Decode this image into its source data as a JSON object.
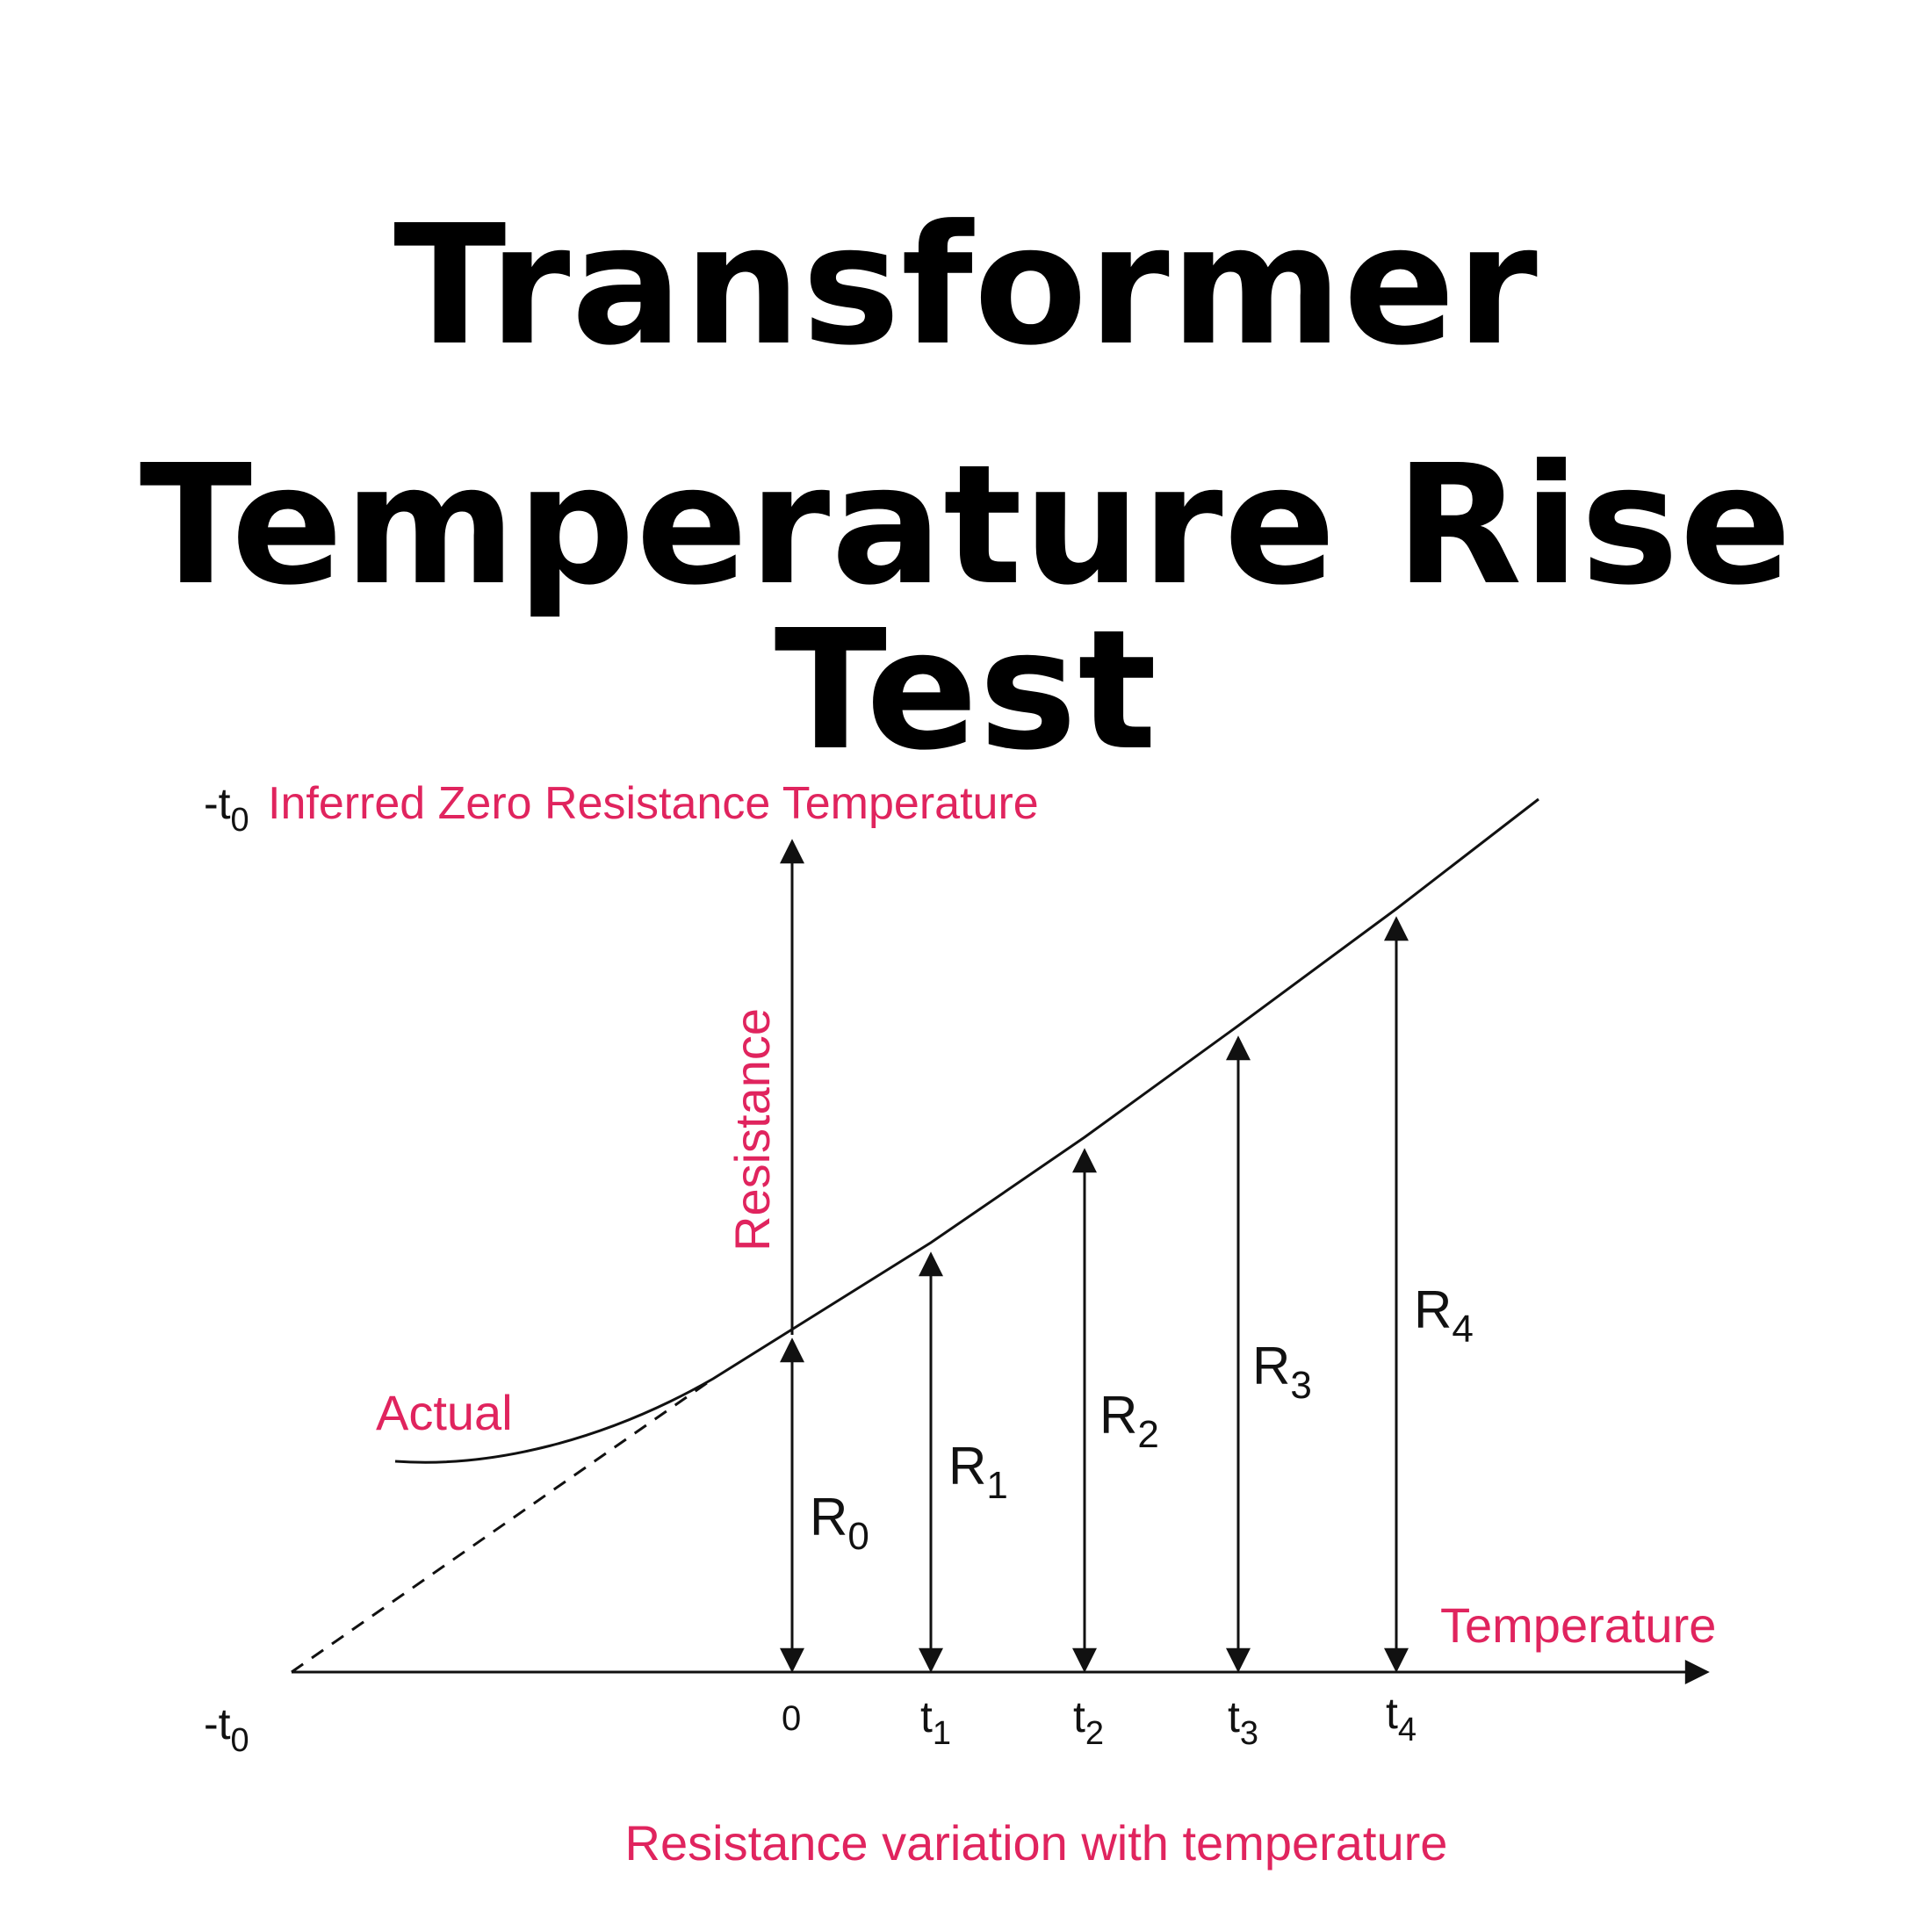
{
  "title": {
    "line1": "Transformer",
    "line2": "Temperature Rise Test"
  },
  "diagram": {
    "inferred_label": {
      "prefix": "-t",
      "sub": "0",
      "text": "Inferred Zero Resistance Temperature"
    },
    "y_axis_label": "Resistance",
    "x_axis_label": "Temperature",
    "actual_label": "Actual",
    "caption": "Resistance variation with temperature",
    "origin_label": {
      "prefix": "-t",
      "sub": "0"
    },
    "zero_tick": "0",
    "ticks": [
      {
        "prefix": "t",
        "sub": "1"
      },
      {
        "prefix": "t",
        "sub": "2"
      },
      {
        "prefix": "t",
        "sub": "3"
      },
      {
        "prefix": "t",
        "sub": "4"
      }
    ],
    "resistances": [
      {
        "prefix": "R",
        "sub": "0"
      },
      {
        "prefix": "R",
        "sub": "1"
      },
      {
        "prefix": "R",
        "sub": "2"
      },
      {
        "prefix": "R",
        "sub": "3"
      },
      {
        "prefix": "R",
        "sub": "4"
      }
    ],
    "colors": {
      "label": "#e0245e",
      "line": "#111111"
    }
  }
}
